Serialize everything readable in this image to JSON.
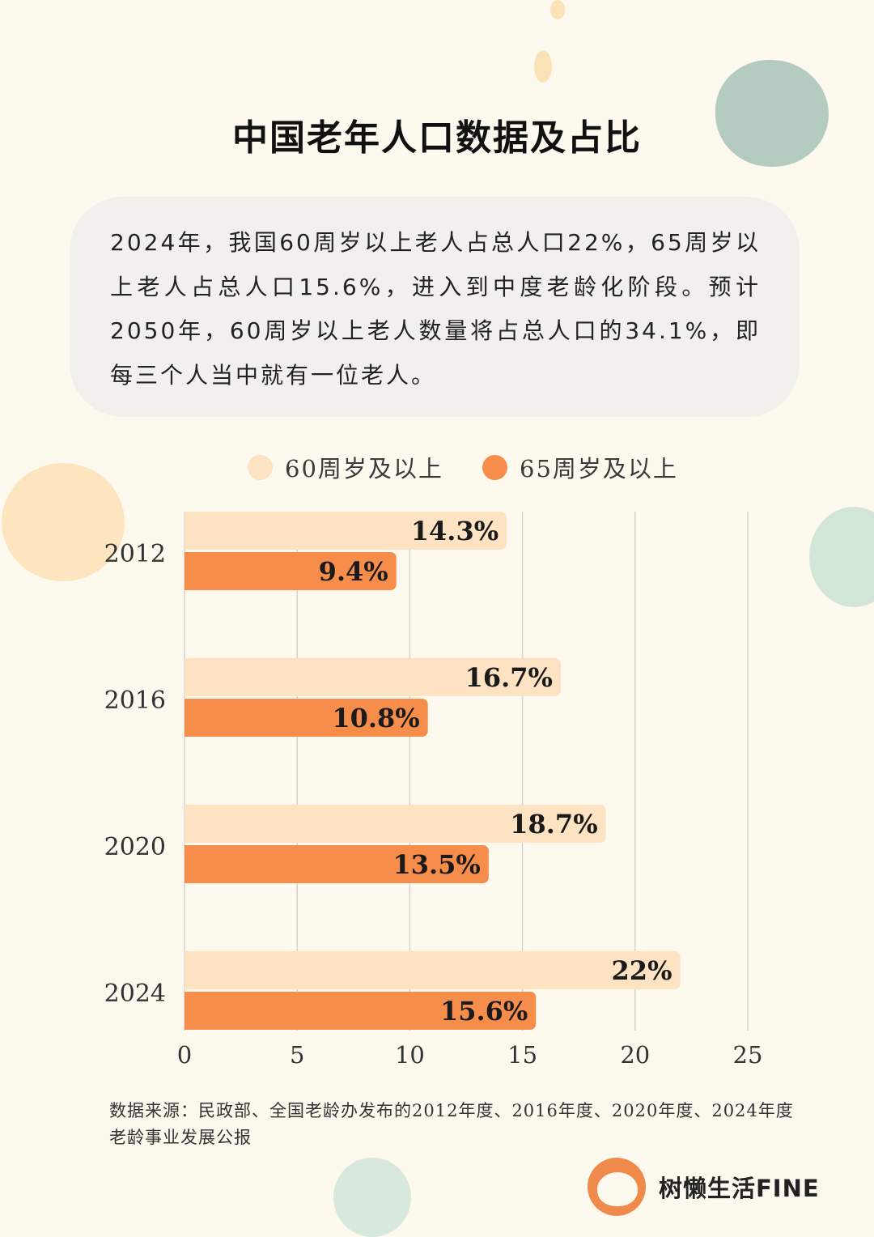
{
  "title": "中国老年人口数据及占比",
  "intro_text": "2024年，我国60周岁以上老人占总人口22%，65周岁以上老人占总人口15.6%，进入到中度老龄化阶段。预计2050年，60周岁以上老人数量将占总人口的34.1%，即每三个人当中就有一位老人。",
  "colors": {
    "series_60": "#fde3c1",
    "series_65": "#f78d4b",
    "background": "#fdf9ef",
    "gridline": "#d4d2cc"
  },
  "chart_data": {
    "type": "bar",
    "orientation": "horizontal",
    "categories": [
      "2012",
      "2016",
      "2020",
      "2024"
    ],
    "series": [
      {
        "name": "60周岁及以上",
        "values": [
          14.3,
          16.7,
          18.7,
          22
        ],
        "labels": [
          "14.3%",
          "16.7%",
          "18.7%",
          "22%"
        ]
      },
      {
        "name": "65周岁及以上",
        "values": [
          9.4,
          10.8,
          13.5,
          15.6
        ],
        "labels": [
          "9.4%",
          "10.8%",
          "13.5%",
          "15.6%"
        ]
      }
    ],
    "xlim": [
      0,
      25
    ],
    "xticks": [
      "0",
      "5",
      "10",
      "15",
      "20",
      "25"
    ],
    "grid": true,
    "legend_position": "top"
  },
  "source": {
    "line1": "数据来源：民政部、全国老龄办发布的2012年度、2016年度、2020年度、2024年度",
    "line2": "老龄事业发展公报"
  },
  "brand": {
    "name": "树懒生活FINE",
    "icon": "sloth-logo-icon"
  }
}
